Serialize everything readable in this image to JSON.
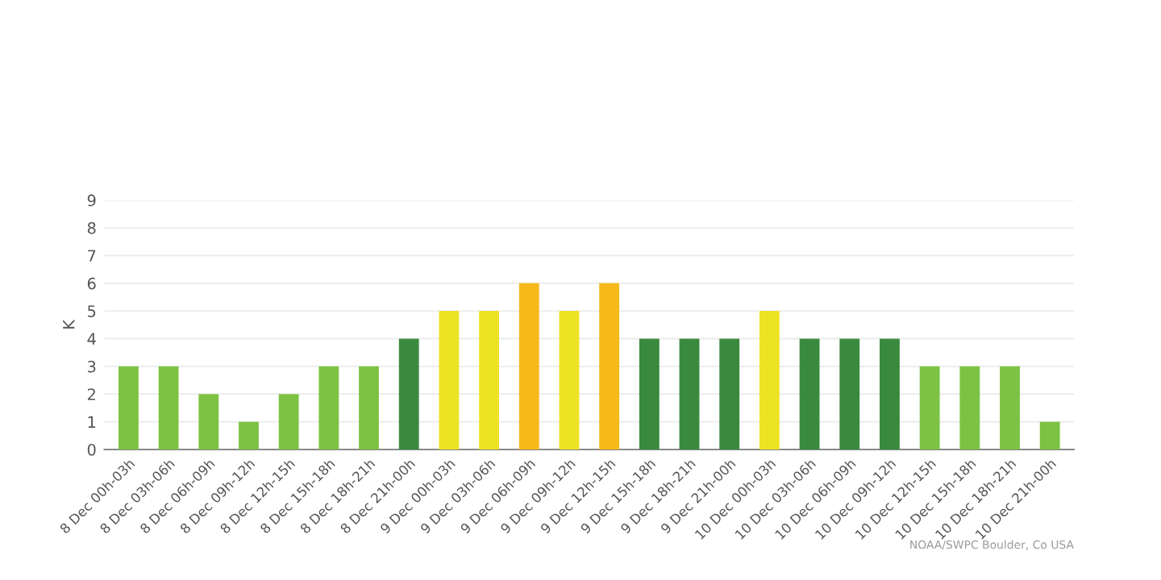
{
  "chart_data": {
    "type": "bar",
    "ylabel": "K",
    "categories": [
      "8 Dec 00h-03h",
      "8 Dec 03h-06h",
      "8 Dec 06h-09h",
      "8 Dec 09h-12h",
      "8 Dec 12h-15h",
      "8 Dec 15h-18h",
      "8 Dec 18h-21h",
      "8 Dec 21h-00h",
      "9 Dec 00h-03h",
      "9 Dec 03h-06h",
      "9 Dec 06h-09h",
      "9 Dec 09h-12h",
      "9 Dec 12h-15h",
      "9 Dec 15h-18h",
      "9 Dec 18h-21h",
      "9 Dec 21h-00h",
      "10 Dec 00h-03h",
      "10 Dec 03h-06h",
      "10 Dec 06h-09h",
      "10 Dec 09h-12h",
      "10 Dec 12h-15h",
      "10 Dec 15h-18h",
      "10 Dec 18h-21h",
      "10 Dec 21h-00h"
    ],
    "values": [
      3,
      3,
      2,
      1,
      2,
      3,
      3,
      4,
      5,
      5,
      6,
      5,
      6,
      4,
      4,
      4,
      5,
      4,
      4,
      4,
      3,
      3,
      3,
      1
    ],
    "colors": [
      "#7dc242",
      "#7dc242",
      "#7dc242",
      "#7dc242",
      "#7dc242",
      "#7dc242",
      "#7dc242",
      "#3a8a3e",
      "#ede325",
      "#ede325",
      "#f5b91a",
      "#ede325",
      "#f5b91a",
      "#3a8a3e",
      "#3a8a3e",
      "#3a8a3e",
      "#ede325",
      "#3a8a3e",
      "#3a8a3e",
      "#3a8a3e",
      "#7dc242",
      "#7dc242",
      "#7dc242",
      "#7dc242"
    ],
    "ylim": [
      0,
      9
    ],
    "yticks": [
      0,
      1,
      2,
      3,
      4,
      5,
      6,
      7,
      8,
      9
    ],
    "grid": "y",
    "annotations": [
      "NOAA/SWPC Boulder, Co USA"
    ]
  }
}
